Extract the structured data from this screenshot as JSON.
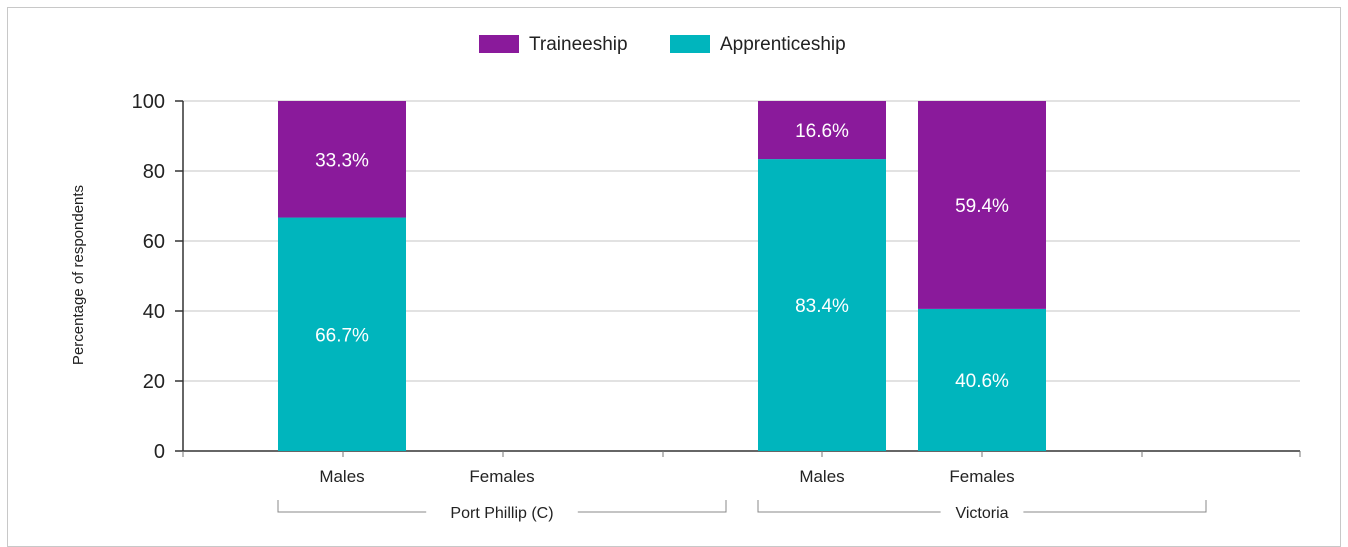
{
  "chart_data": {
    "type": "bar",
    "stacked": true,
    "ylabel": "Percentage of respondents",
    "ylim": [
      0,
      100
    ],
    "yticks": [
      0,
      20,
      40,
      60,
      80,
      100
    ],
    "grid": true,
    "legend_position": "top-center",
    "groups": [
      {
        "name": "Port Phillip (C)",
        "categories": [
          "Males",
          "Females"
        ]
      },
      {
        "name": "Victoria",
        "categories": [
          "Males",
          "Females"
        ]
      }
    ],
    "categories": [
      "Males",
      "Females",
      "Males",
      "Females"
    ],
    "series": [
      {
        "name": "Apprenticeship",
        "color": "#00b5bd",
        "values": [
          66.7,
          null,
          83.4,
          40.6
        ],
        "labels": [
          "66.7%",
          "",
          "83.4%",
          "40.6%"
        ]
      },
      {
        "name": "Traineeship",
        "color": "#8a1a9b",
        "values": [
          33.3,
          null,
          16.6,
          59.4
        ],
        "labels": [
          "33.3%",
          "",
          "16.6%",
          "59.4%"
        ]
      }
    ],
    "legend_order": [
      "Traineeship",
      "Apprenticeship"
    ]
  }
}
